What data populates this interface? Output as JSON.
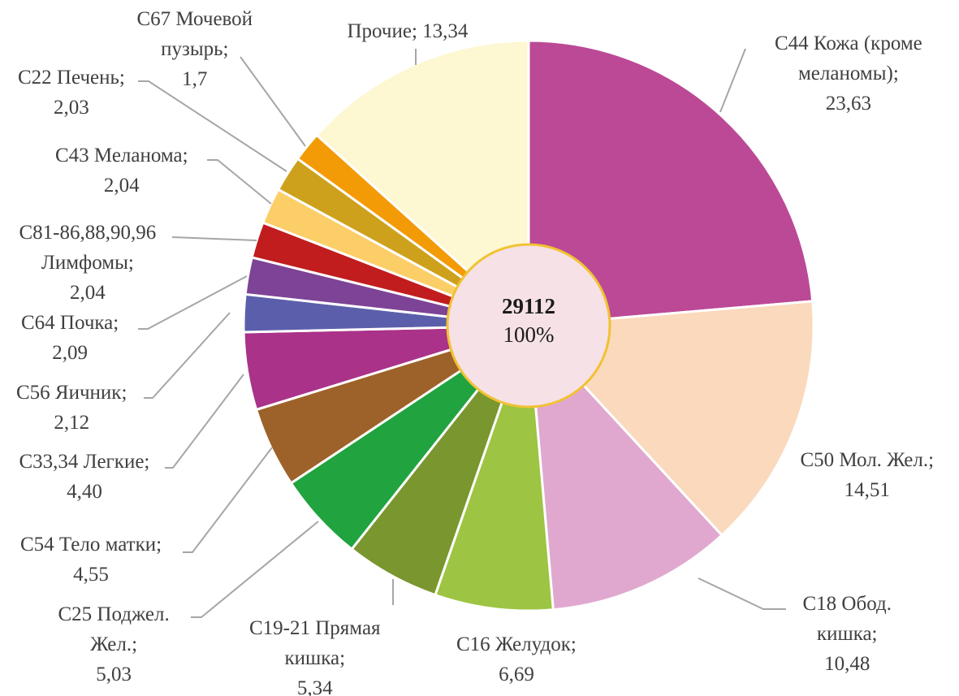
{
  "chart_data": {
    "type": "pie",
    "title": "",
    "center": {
      "total": "29112",
      "percent": "100%"
    },
    "slices": [
      {
        "label": [
          "C44 Кожа (кроме",
          "меланомы);",
          "23,63"
        ],
        "value": 23.63,
        "color": "#BB4996"
      },
      {
        "label": [
          "C50 Мол. Жел.;",
          "14,51"
        ],
        "value": 14.51,
        "color": "#FAD9BC"
      },
      {
        "label": [
          "C18 Обод.",
          "кишка;",
          "10,48"
        ],
        "value": 10.48,
        "color": "#E0A8CF"
      },
      {
        "label": [
          "C16 Желудок;",
          "6,69"
        ],
        "value": 6.69,
        "color": "#9DC443"
      },
      {
        "label": [
          "C19-21 Прямая",
          "кишка;",
          "5,34"
        ],
        "value": 5.34,
        "color": "#7A962E"
      },
      {
        "label": [
          "C25 Поджел.",
          "Жел.;",
          "5,03"
        ],
        "value": 5.03,
        "color": "#21A33F"
      },
      {
        "label": [
          "C54 Тело матки;",
          "4,55"
        ],
        "value": 4.55,
        "color": "#9D6229"
      },
      {
        "label": [
          "C33,34 Легкие;",
          "4,40"
        ],
        "value": 4.4,
        "color": "#AA3289"
      },
      {
        "label": [
          "C56 Яичник;",
          "2,12"
        ],
        "value": 2.12,
        "color": "#5B5FAB"
      },
      {
        "label": [
          "C64 Почка;",
          "2,09"
        ],
        "value": 2.09,
        "color": "#7D4396"
      },
      {
        "label": [
          "C81-86,88,90,96",
          "Лимфомы;",
          "2,04"
        ],
        "value": 2.04,
        "color": "#C11D1E"
      },
      {
        "label": [
          "C43 Меланома;",
          "2,04"
        ],
        "value": 2.04,
        "color": "#FCCE67"
      },
      {
        "label": [
          "C22 Печень;",
          "2,03"
        ],
        "value": 2.03,
        "color": "#CEA11C"
      },
      {
        "label": [
          "C67 Мочевой",
          "пузырь;",
          "1,7"
        ],
        "value": 1.7,
        "color": "#F39B07"
      },
      {
        "label": [
          "Прочие; 13,34"
        ],
        "value": 13.34,
        "color": "#FDF7D2"
      }
    ],
    "center_fill": "#F5E1E6",
    "center_stroke": "#F1C232",
    "leader_color": "#a6a6a6"
  }
}
